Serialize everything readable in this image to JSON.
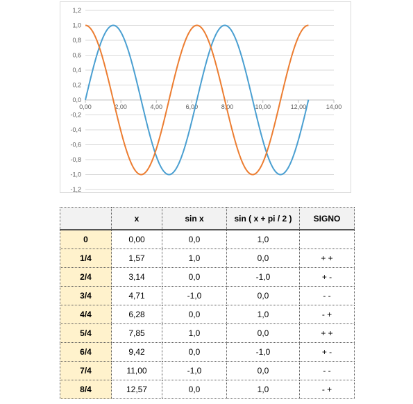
{
  "chart_data": {
    "type": "line",
    "x_ticks": [
      "0,00",
      "2,00",
      "4,00",
      "6,00",
      "8,00",
      "10,00",
      "12,00",
      "14,00"
    ],
    "y_ticks": [
      "1,2",
      "1,0",
      "0,8",
      "0,6",
      "0,4",
      "0,2",
      "0,0",
      "-0,2",
      "-0,4",
      "-0,6",
      "-0,8",
      "-1,0",
      "-1,2"
    ],
    "xlim": [
      0,
      14
    ],
    "ylim": [
      -1.2,
      1.2
    ],
    "grid": true,
    "legend": "none",
    "series": [
      {
        "function": "sin",
        "color": "#4a9fd1",
        "x_range": [
          0,
          12.57
        ]
      },
      {
        "function": "cos",
        "color": "#ec7d31",
        "x_range": [
          0,
          12.57
        ]
      }
    ]
  },
  "table": {
    "headers": [
      "",
      "x",
      "sin x",
      "sin ( x + pi / 2 )",
      "SIGNO"
    ],
    "rows": [
      [
        "0",
        "0,00",
        "0,0",
        "1,0",
        ""
      ],
      [
        "1/4",
        "1,57",
        "1,0",
        "0,0",
        "+ +"
      ],
      [
        "2/4",
        "3,14",
        "0,0",
        "-1,0",
        "+ -"
      ],
      [
        "3/4",
        "4,71",
        "-1,0",
        "0,0",
        "- -"
      ],
      [
        "4/4",
        "6,28",
        "0,0",
        "1,0",
        "- +"
      ],
      [
        "5/4",
        "7,85",
        "1,0",
        "0,0",
        "+ +"
      ],
      [
        "6/4",
        "9,42",
        "0,0",
        "-1,0",
        "+ -"
      ],
      [
        "7/4",
        "11,00",
        "-1,0",
        "0,0",
        "- -"
      ],
      [
        "8/4",
        "12,57",
        "0,0",
        "1,0",
        "- +"
      ]
    ]
  }
}
